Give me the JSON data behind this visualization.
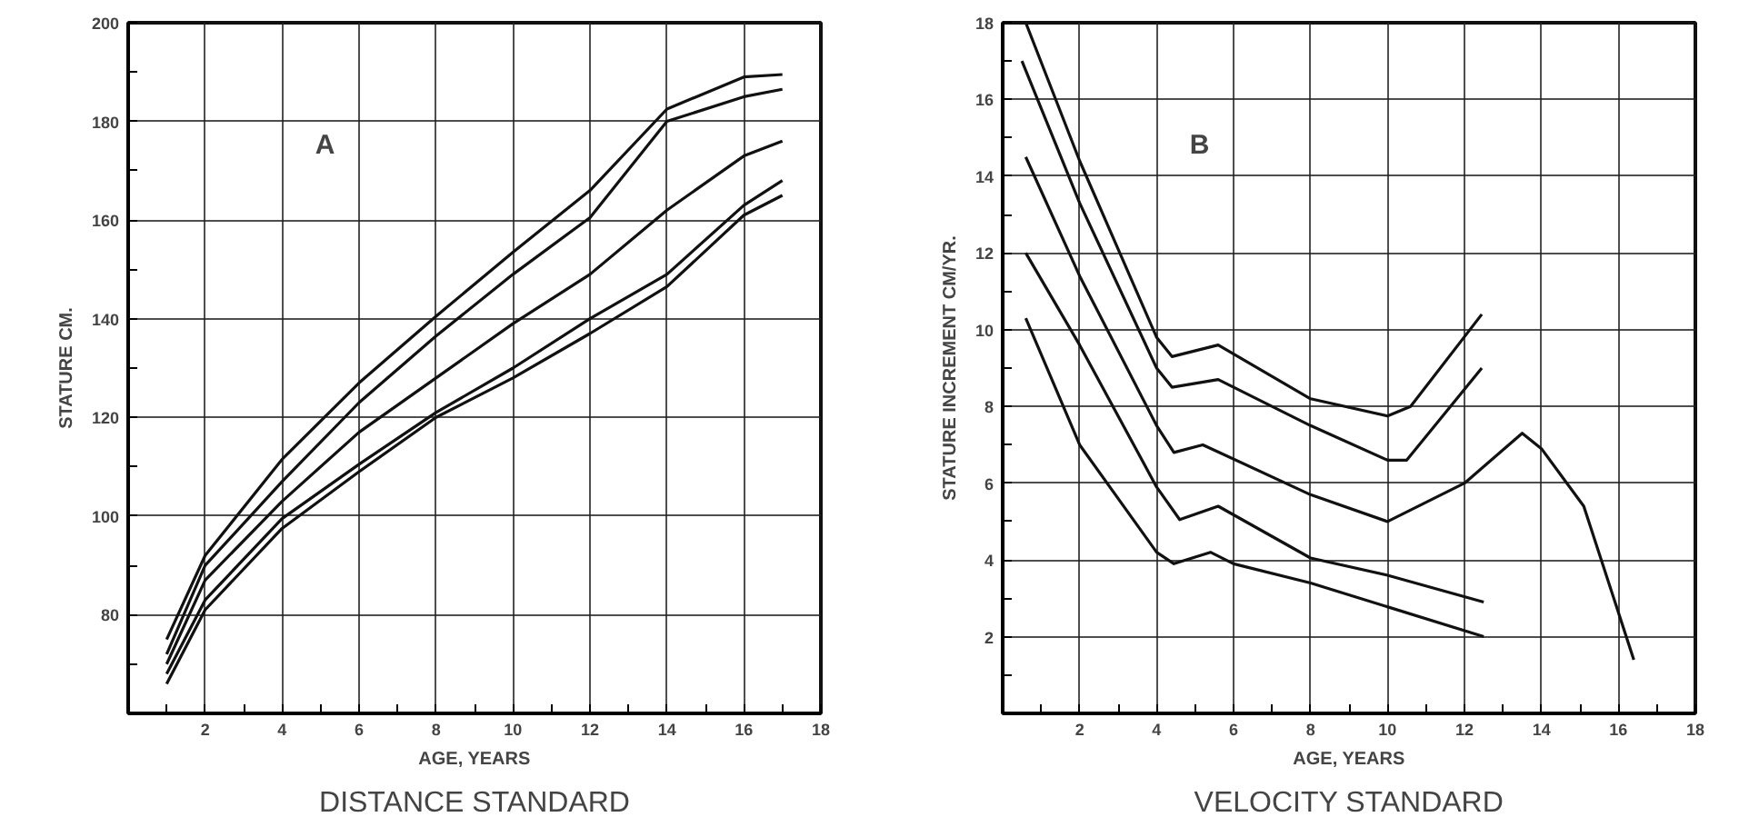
{
  "chart_data": [
    {
      "type": "line",
      "title": "DISTANCE STANDARD",
      "xlabel": "AGE, YEARS",
      "ylabel": "STATURE CM.",
      "annotations": [
        "A"
      ],
      "xlim": [
        0,
        18
      ],
      "ylim": [
        60,
        200
      ],
      "xticks": [
        {
          "value": 1,
          "label": null
        },
        2,
        {
          "value": 3,
          "label": null
        },
        4,
        {
          "value": 5,
          "label": null
        },
        6,
        {
          "value": 7,
          "label": null
        },
        8,
        {
          "value": 9,
          "label": null
        },
        10,
        {
          "value": 11,
          "label": null
        },
        12,
        {
          "value": 13,
          "label": null
        },
        14,
        {
          "value": 15,
          "label": null
        },
        16,
        {
          "value": 17,
          "label": null
        },
        18
      ],
      "yticks": [
        {
          "value": 70,
          "label": null
        },
        80,
        {
          "value": 90,
          "label": null
        },
        100,
        {
          "value": 110,
          "label": null
        },
        120,
        {
          "value": 130,
          "label": null
        },
        140,
        {
          "value": 150,
          "label": null
        },
        160,
        {
          "value": 170,
          "label": null
        },
        180,
        {
          "value": 190,
          "label": null
        },
        200
      ],
      "grid": true,
      "marker": "none",
      "line_style": "solid",
      "x": [
        1,
        2,
        4,
        6,
        8,
        10,
        12,
        14,
        16,
        17
      ],
      "series": [
        {
          "color": "#111111",
          "values": [
            75,
            92,
            111.5,
            127,
            140.5,
            153.5,
            166,
            182.5,
            189,
            189.5
          ]
        },
        {
          "color": "#111111",
          "values": [
            72,
            90,
            107,
            123,
            136.5,
            149,
            160.5,
            180,
            185,
            186.5
          ]
        },
        {
          "color": "#111111",
          "values": [
            70,
            87,
            103,
            117,
            128,
            139,
            149,
            162,
            173,
            176
          ]
        },
        {
          "color": "#111111",
          "values": [
            68,
            83,
            99.5,
            110.5,
            121,
            130,
            140,
            149,
            163,
            168
          ]
        },
        {
          "color": "#111111",
          "values": [
            66,
            81,
            97.5,
            109,
            120,
            128,
            137,
            146.5,
            161,
            165
          ]
        }
      ]
    },
    {
      "type": "line",
      "title": "VELOCITY STANDARD",
      "xlabel": "AGE, YEARS",
      "ylabel": "STATURE INCREMENT CM/YR.",
      "annotations": [
        "B"
      ],
      "xlim": [
        0,
        18
      ],
      "ylim": [
        0,
        18
      ],
      "xticks": [
        {
          "value": 1,
          "label": null
        },
        2,
        {
          "value": 3,
          "label": null
        },
        4,
        {
          "value": 5,
          "label": null
        },
        6,
        {
          "value": 7,
          "label": null
        },
        8,
        {
          "value": 9,
          "label": null
        },
        10,
        {
          "value": 11,
          "label": null
        },
        12,
        {
          "value": 13,
          "label": null
        },
        14,
        {
          "value": 15,
          "label": null
        },
        16,
        {
          "value": 17,
          "label": null
        },
        18
      ],
      "yticks": [
        {
          "value": 1,
          "label": null
        },
        2,
        {
          "value": 3,
          "label": null
        },
        4,
        {
          "value": 5,
          "label": null
        },
        6,
        {
          "value": 7,
          "label": null
        },
        8,
        {
          "value": 9,
          "label": null
        },
        10,
        {
          "value": 11,
          "label": null
        },
        12,
        {
          "value": 13,
          "label": null
        },
        14,
        {
          "value": 15,
          "label": null
        },
        16,
        {
          "value": 17,
          "label": null
        },
        18
      ],
      "grid": true,
      "marker": "none",
      "line_style": "solid",
      "series": [
        {
          "color": "#111111",
          "x": [
            0.6,
            2,
            4,
            4.4,
            5.6,
            8,
            10,
            10.6,
            12.45
          ],
          "values": [
            18,
            14.4,
            9.8,
            9.3,
            9.6,
            8.2,
            7.75,
            8.0,
            10.4
          ]
        },
        {
          "color": "#111111",
          "x": [
            0.5,
            2,
            4,
            4.4,
            5.6,
            8,
            10,
            10.5,
            12.45
          ],
          "values": [
            17,
            13.3,
            9,
            8.5,
            8.7,
            7.5,
            6.6,
            6.6,
            9.0
          ]
        },
        {
          "color": "#111111",
          "x": [
            0.6,
            2,
            4,
            4.45,
            5.2,
            8,
            10,
            12,
            13.5,
            14,
            15.1,
            16.4
          ],
          "values": [
            14.5,
            11.4,
            7.5,
            6.8,
            7.0,
            5.7,
            5.0,
            6.0,
            7.3,
            6.9,
            5.4,
            1.4
          ]
        },
        {
          "color": "#111111",
          "x": [
            0.6,
            2,
            4,
            4.6,
            5.6,
            8,
            10,
            12.5
          ],
          "values": [
            12,
            9.6,
            5.9,
            5.05,
            5.4,
            4.05,
            3.6,
            2.9
          ]
        },
        {
          "color": "#111111",
          "x": [
            0.6,
            2,
            4,
            4.45,
            5.4,
            6,
            8,
            12.5
          ],
          "values": [
            10.3,
            7.0,
            4.2,
            3.9,
            4.2,
            3.9,
            3.4,
            2.0
          ]
        }
      ]
    }
  ]
}
